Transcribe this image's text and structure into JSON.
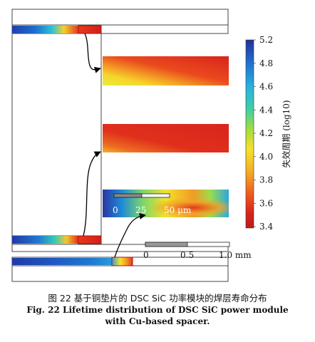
{
  "colorbar": {
    "ticks": [
      "5.2",
      "4.8",
      "4.6",
      "4.4",
      "4.2",
      "4.0",
      "3.8",
      "3.6",
      "3.4"
    ],
    "title": "失效周期 (log10)",
    "stops": [
      "#2a2e9a",
      "#1e6fd0",
      "#27b3e0",
      "#3fd0a6",
      "#a8dd3c",
      "#f5e22c",
      "#f5ad26",
      "#ef5a1e",
      "#d9241c",
      "#b71d1b"
    ]
  },
  "scale_micro": {
    "labels": [
      "0",
      "25",
      "50 μm"
    ]
  },
  "scale_macro": {
    "labels": [
      "0",
      "0.5",
      "1.0 mm"
    ]
  },
  "caption": {
    "cn": "图 22    基于铜垫片的 DSC SiC 功率模块的焊层寿命分布",
    "en_line1": "Fig. 22    Lifetime distribution of DSC SiC power module",
    "en_line2": "with Cu-based spacer."
  }
}
